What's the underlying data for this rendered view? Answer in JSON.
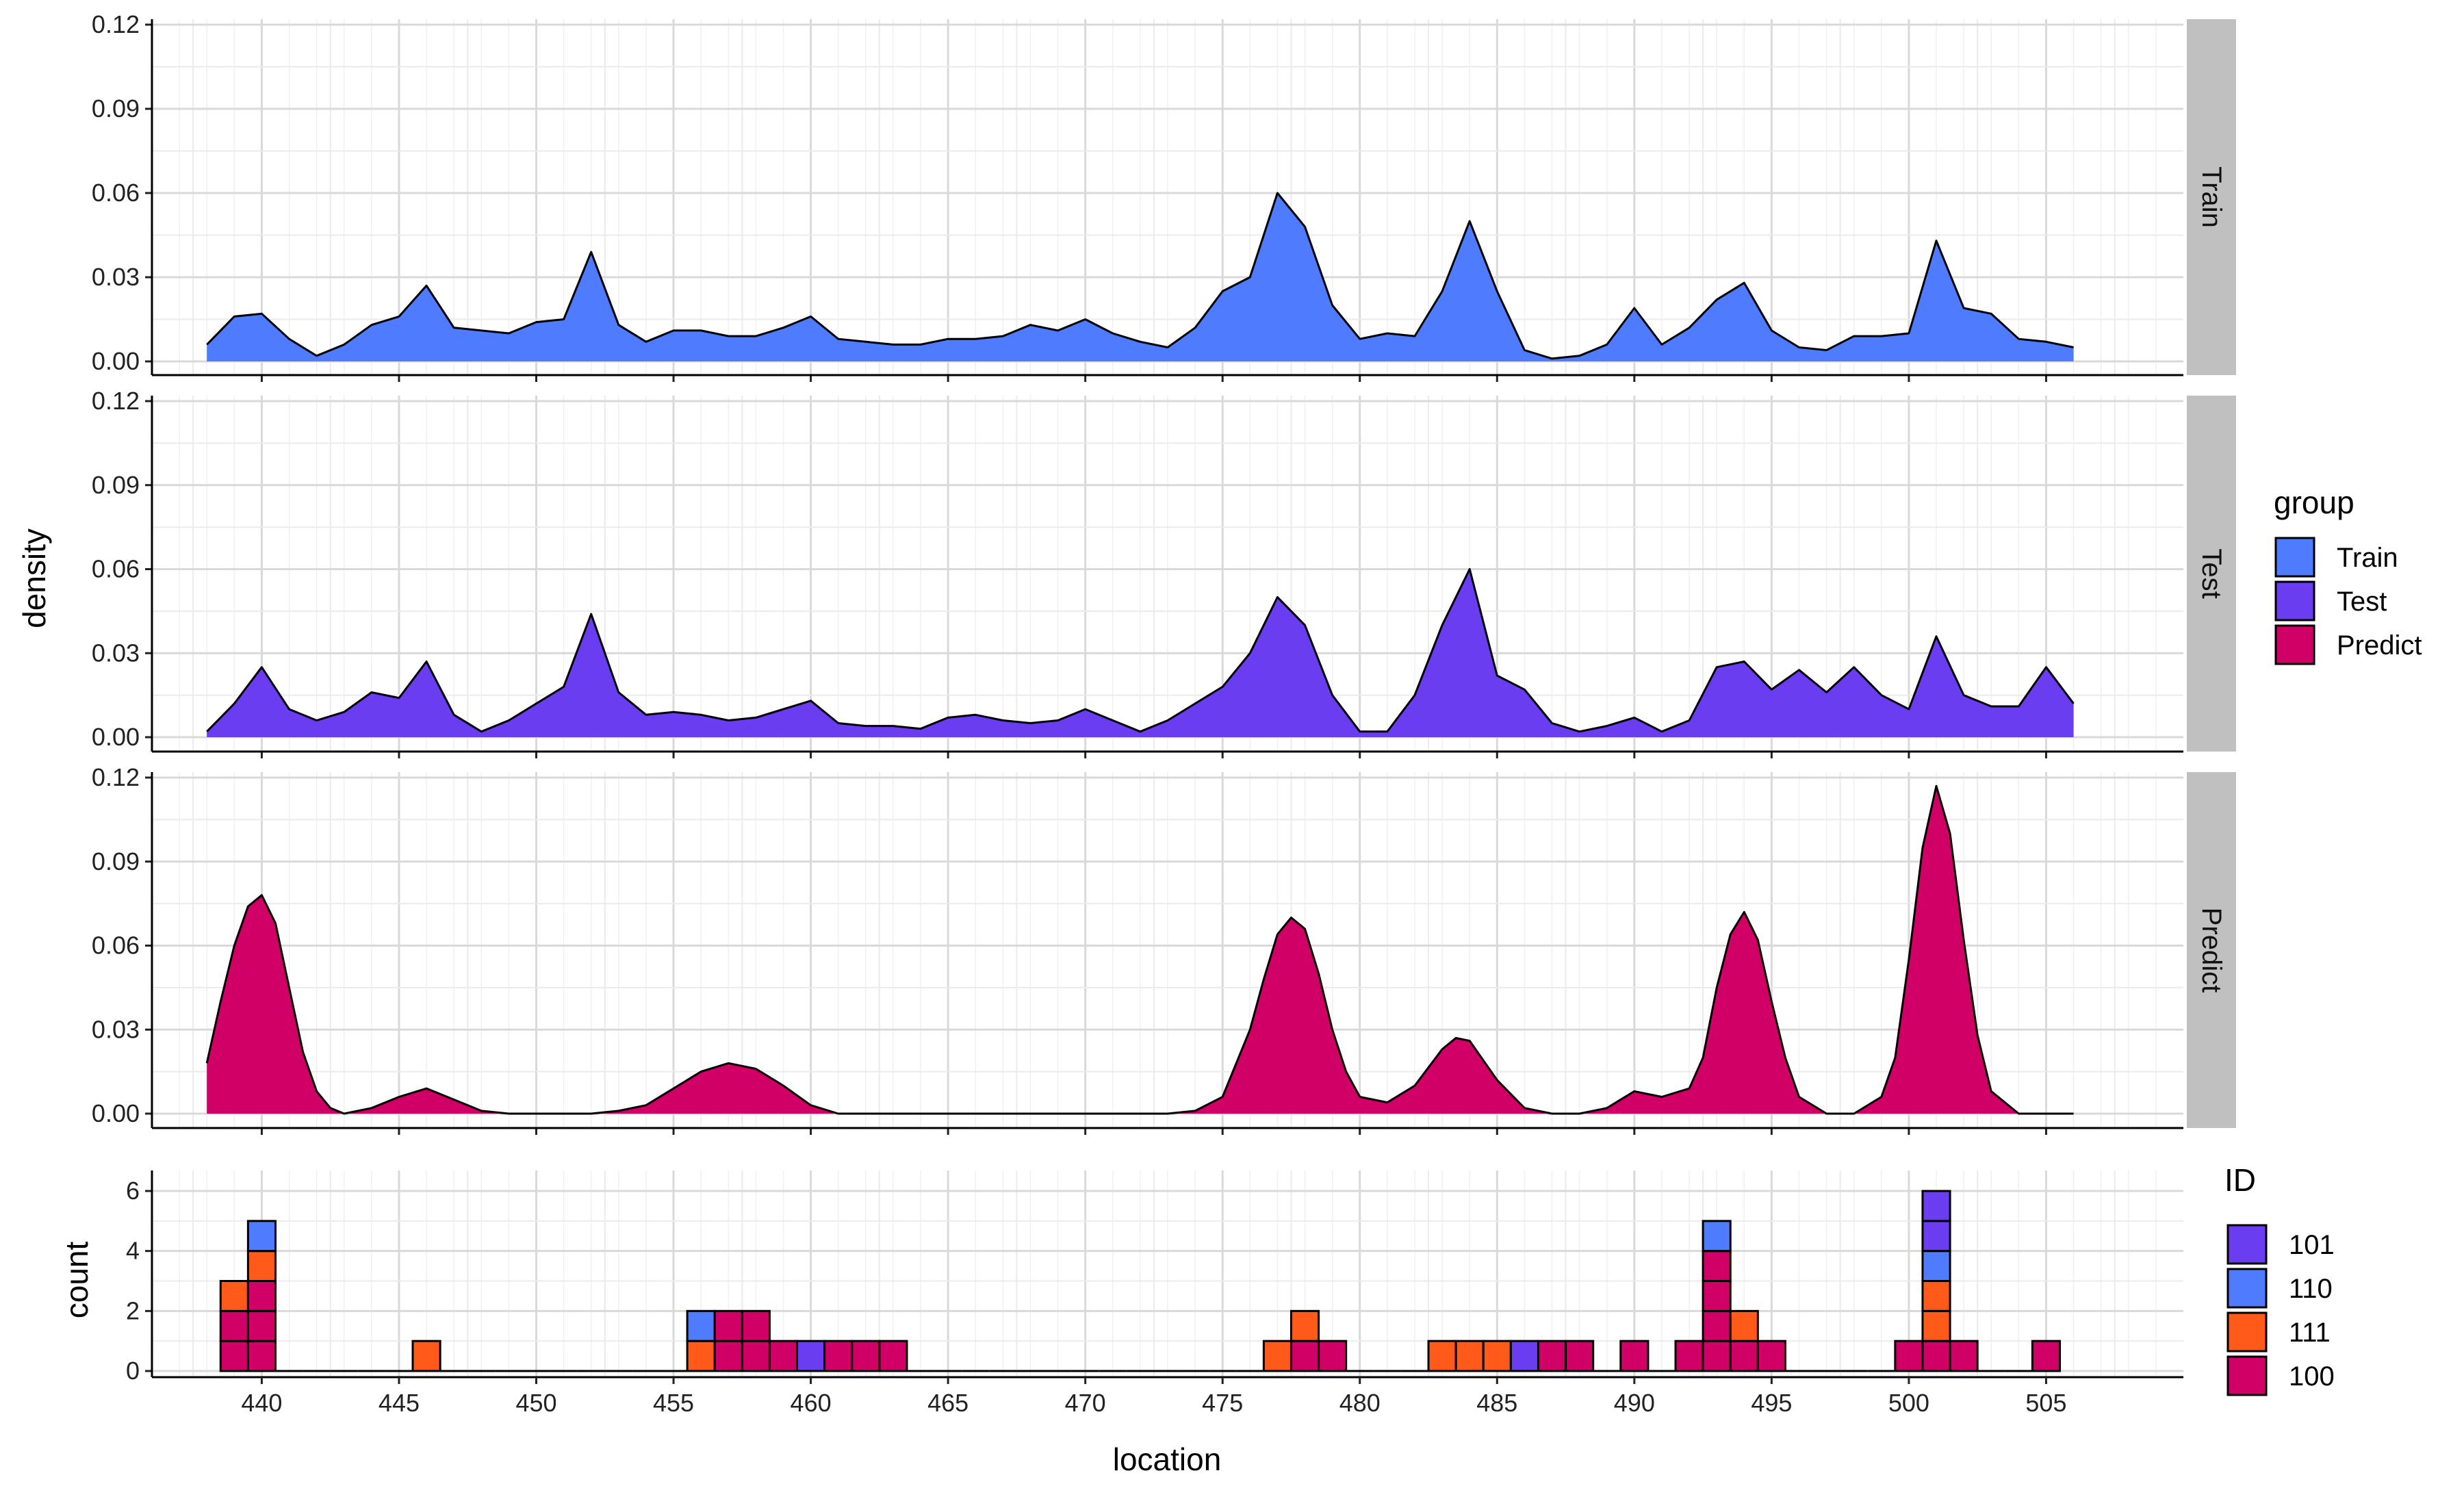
{
  "chart_data": [
    {
      "type": "area",
      "subtype": "faceted-density",
      "xlabel": "",
      "ylabel": "density",
      "xlim": [
        436,
        510
      ],
      "ylim": [
        0,
        0.12
      ],
      "x_ticks": [
        440,
        445,
        450,
        455,
        460,
        465,
        470,
        475,
        480,
        485,
        490,
        495,
        500,
        505
      ],
      "y_ticks": [
        0.0,
        0.03,
        0.06,
        0.09,
        0.12
      ],
      "y_tick_labels": [
        "0.00",
        "0.03",
        "0.06",
        "0.09",
        "0.12"
      ],
      "grid": true,
      "legend_position": "right",
      "legend_title": "group",
      "series": [
        {
          "name": "Train",
          "color": "#4f7cff",
          "x": [
            438,
            439,
            440,
            441,
            442,
            443,
            444,
            445,
            446,
            447,
            448,
            449,
            450,
            451,
            452,
            453,
            454,
            455,
            456,
            457,
            458,
            459,
            460,
            461,
            462,
            463,
            464,
            465,
            466,
            467,
            468,
            469,
            470,
            471,
            472,
            473,
            474,
            475,
            476,
            477,
            478,
            479,
            480,
            481,
            482,
            483,
            484,
            485,
            486,
            487,
            488,
            489,
            490,
            491,
            492,
            493,
            494,
            495,
            496,
            497,
            498,
            499,
            500,
            501,
            502,
            503,
            504,
            505,
            506
          ],
          "values": [
            0.006,
            0.016,
            0.017,
            0.008,
            0.002,
            0.006,
            0.013,
            0.016,
            0.027,
            0.012,
            0.011,
            0.01,
            0.014,
            0.015,
            0.039,
            0.013,
            0.007,
            0.011,
            0.011,
            0.009,
            0.009,
            0.012,
            0.016,
            0.008,
            0.007,
            0.006,
            0.006,
            0.008,
            0.008,
            0.009,
            0.013,
            0.011,
            0.015,
            0.01,
            0.007,
            0.005,
            0.012,
            0.025,
            0.03,
            0.06,
            0.048,
            0.02,
            0.008,
            0.01,
            0.009,
            0.025,
            0.05,
            0.025,
            0.004,
            0.001,
            0.002,
            0.006,
            0.019,
            0.006,
            0.012,
            0.022,
            0.028,
            0.011,
            0.005,
            0.004,
            0.009,
            0.009,
            0.01,
            0.043,
            0.019,
            0.017,
            0.008,
            0.007,
            0.005
          ]
        },
        {
          "name": "Test",
          "color": "#6a3df0",
          "x": [
            438,
            439,
            440,
            441,
            442,
            443,
            444,
            445,
            446,
            447,
            448,
            449,
            450,
            451,
            452,
            453,
            454,
            455,
            456,
            457,
            458,
            459,
            460,
            461,
            462,
            463,
            464,
            465,
            466,
            467,
            468,
            469,
            470,
            471,
            472,
            473,
            474,
            475,
            476,
            477,
            478,
            479,
            480,
            481,
            482,
            483,
            484,
            485,
            486,
            487,
            488,
            489,
            490,
            491,
            492,
            493,
            494,
            495,
            496,
            497,
            498,
            499,
            500,
            501,
            502,
            503,
            504,
            505,
            506
          ],
          "values": [
            0.002,
            0.012,
            0.025,
            0.01,
            0.006,
            0.009,
            0.016,
            0.014,
            0.027,
            0.008,
            0.002,
            0.006,
            0.012,
            0.018,
            0.044,
            0.016,
            0.008,
            0.009,
            0.008,
            0.006,
            0.007,
            0.01,
            0.013,
            0.005,
            0.004,
            0.004,
            0.003,
            0.007,
            0.008,
            0.006,
            0.005,
            0.006,
            0.01,
            0.006,
            0.002,
            0.006,
            0.012,
            0.018,
            0.03,
            0.05,
            0.04,
            0.015,
            0.002,
            0.002,
            0.015,
            0.04,
            0.06,
            0.022,
            0.017,
            0.005,
            0.002,
            0.004,
            0.007,
            0.002,
            0.006,
            0.025,
            0.027,
            0.017,
            0.024,
            0.016,
            0.025,
            0.015,
            0.01,
            0.036,
            0.015,
            0.011,
            0.011,
            0.025,
            0.012
          ]
        },
        {
          "name": "Predict",
          "color": "#d10066",
          "x": [
            438,
            438.5,
            439,
            439.5,
            440,
            440.5,
            441,
            441.5,
            442,
            442.5,
            443,
            444,
            445,
            446,
            447,
            448,
            449,
            450,
            451,
            452,
            453,
            454,
            455,
            456,
            457,
            458,
            459,
            460,
            461,
            465,
            470,
            473,
            474,
            475,
            476,
            476.5,
            477,
            477.5,
            478,
            478.5,
            479,
            479.5,
            480,
            481,
            482,
            483,
            483.5,
            484,
            485,
            486,
            487,
            488,
            489,
            490,
            491,
            492,
            492.5,
            493,
            493.5,
            494,
            494.5,
            495,
            495.5,
            496,
            497,
            498,
            499,
            499.5,
            500,
            500.5,
            501,
            501.5,
            502,
            502.5,
            503,
            504,
            505,
            506
          ],
          "values": [
            0.018,
            0.04,
            0.06,
            0.074,
            0.078,
            0.068,
            0.045,
            0.022,
            0.008,
            0.002,
            0.0,
            0.002,
            0.006,
            0.009,
            0.005,
            0.001,
            0.0,
            0.0,
            0.0,
            0.0,
            0.001,
            0.003,
            0.009,
            0.015,
            0.018,
            0.016,
            0.01,
            0.003,
            0.0,
            0.0,
            0.0,
            0.0,
            0.001,
            0.006,
            0.03,
            0.048,
            0.064,
            0.07,
            0.066,
            0.05,
            0.03,
            0.015,
            0.006,
            0.004,
            0.01,
            0.023,
            0.027,
            0.026,
            0.012,
            0.002,
            0.0,
            0.0,
            0.002,
            0.008,
            0.006,
            0.009,
            0.02,
            0.045,
            0.064,
            0.072,
            0.062,
            0.04,
            0.02,
            0.006,
            0.0,
            0.0,
            0.006,
            0.02,
            0.055,
            0.095,
            0.117,
            0.1,
            0.062,
            0.028,
            0.008,
            0.0,
            0.0,
            0.0
          ]
        }
      ]
    },
    {
      "type": "bar",
      "subtype": "stacked-histogram",
      "xlabel": "location",
      "ylabel": "count",
      "xlim": [
        436,
        510
      ],
      "ylim": [
        0,
        6.2
      ],
      "x_ticks": [
        440,
        445,
        450,
        455,
        460,
        465,
        470,
        475,
        480,
        485,
        490,
        495,
        500,
        505
      ],
      "y_ticks": [
        0,
        2,
        4,
        6
      ],
      "grid": true,
      "legend_position": "right",
      "legend_title": "ID",
      "stack_order": [
        "100",
        "111",
        "110",
        "101"
      ],
      "legend_order": [
        "101",
        "110",
        "111",
        "100"
      ],
      "colors": {
        "101": "#6a3df0",
        "110": "#4f7cff",
        "111": "#ff5a1a",
        "100": "#d10066"
      },
      "bin_width": 1,
      "bins": [
        {
          "x": 439,
          "counts": {
            "100": 2,
            "111": 1
          }
        },
        {
          "x": 440,
          "counts": {
            "100": 3,
            "111": 1,
            "110": 1
          }
        },
        {
          "x": 446,
          "counts": {
            "111": 1
          }
        },
        {
          "x": 456,
          "counts": {
            "111": 1,
            "110": 1
          }
        },
        {
          "x": 457,
          "counts": {
            "100": 2
          }
        },
        {
          "x": 458,
          "counts": {
            "100": 2
          }
        },
        {
          "x": 459,
          "counts": {
            "100": 1
          }
        },
        {
          "x": 460,
          "counts": {
            "101": 1
          }
        },
        {
          "x": 461,
          "counts": {
            "100": 1
          }
        },
        {
          "x": 462,
          "counts": {
            "100": 1
          }
        },
        {
          "x": 463,
          "counts": {
            "100": 1
          }
        },
        {
          "x": 477,
          "counts": {
            "111": 1
          }
        },
        {
          "x": 478,
          "counts": {
            "100": 1,
            "111": 1
          }
        },
        {
          "x": 479,
          "counts": {
            "100": 1
          }
        },
        {
          "x": 483,
          "counts": {
            "111": 1
          }
        },
        {
          "x": 484,
          "counts": {
            "111": 1
          }
        },
        {
          "x": 485,
          "counts": {
            "111": 1
          }
        },
        {
          "x": 486,
          "counts": {
            "101": 1
          }
        },
        {
          "x": 487,
          "counts": {
            "100": 1
          }
        },
        {
          "x": 488,
          "counts": {
            "100": 1
          }
        },
        {
          "x": 490,
          "counts": {
            "100": 1
          }
        },
        {
          "x": 492,
          "counts": {
            "100": 1
          }
        },
        {
          "x": 493,
          "counts": {
            "100": 4,
            "110": 1
          }
        },
        {
          "x": 494,
          "counts": {
            "100": 1,
            "111": 1
          }
        },
        {
          "x": 495,
          "counts": {
            "100": 1
          }
        },
        {
          "x": 500,
          "counts": {
            "100": 1
          }
        },
        {
          "x": 501,
          "counts": {
            "100": 1,
            "111": 2,
            "110": 1,
            "101": 2
          }
        },
        {
          "x": 502,
          "counts": {
            "100": 1
          }
        },
        {
          "x": 505,
          "counts": {
            "100": 1
          }
        }
      ]
    }
  ]
}
